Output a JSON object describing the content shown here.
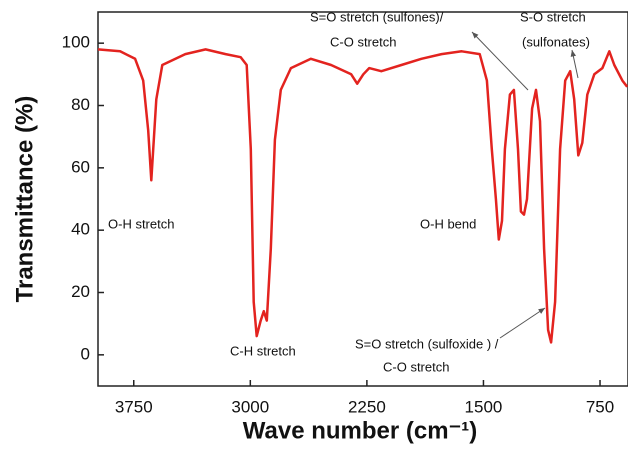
{
  "chart_data": {
    "type": "line",
    "xlabel": "Wave number (cm⁻¹)",
    "ylabel": "Transmittance (%)",
    "xlim": [
      3980,
      570
    ],
    "ylim": [
      -10,
      110
    ],
    "xticks": [
      3750,
      3000,
      2250,
      1500,
      750
    ],
    "yticks": [
      0,
      20,
      40,
      60,
      80,
      100
    ],
    "series": [
      {
        "color": "#e3231f",
        "x": [
          3980,
          3838,
          3741,
          3689,
          3657,
          3637,
          3605,
          3566,
          3418,
          3288,
          3159,
          3062,
          3023,
          2997,
          2978,
          2959,
          2933,
          2913,
          2894,
          2868,
          2842,
          2804,
          2739,
          2610,
          2480,
          2351,
          2312,
          2273,
          2235,
          2157,
          2028,
          1899,
          1769,
          1640,
          1524,
          1478,
          1446,
          1420,
          1401,
          1381,
          1362,
          1330,
          1304,
          1278,
          1259,
          1239,
          1220,
          1187,
          1162,
          1136,
          1110,
          1084,
          1065,
          1039,
          1007,
          974,
          942,
          916,
          890,
          864,
          832,
          787,
          735,
          690,
          658,
          606,
          575
        ],
        "values": [
          98,
          97.4,
          95,
          88,
          72,
          56,
          82,
          93,
          96.5,
          98,
          96.5,
          95.5,
          93,
          66,
          17,
          6,
          11,
          14,
          11,
          34,
          69,
          85,
          92,
          95,
          93,
          90,
          87,
          90,
          92,
          91,
          93,
          95,
          96.5,
          97.4,
          96.5,
          88,
          66,
          50,
          37,
          43,
          66,
          83.5,
          85,
          66,
          46,
          45,
          50,
          79,
          85,
          75,
          34,
          8,
          4,
          17,
          66,
          88,
          91,
          82,
          64,
          68,
          83.5,
          90,
          92,
          97.4,
          93,
          88,
          86
        ]
      }
    ],
    "annotations": [
      [
        "O-H stretch"
      ],
      [
        "C-H stretch"
      ],
      [
        "O-H bend"
      ],
      [
        "S=O stretch (sulfones)/",
        "C-O stretch"
      ],
      [
        "S-O stretch",
        "(sulfonates)"
      ],
      [
        "S=O stretch (sulfoxide ) /",
        "C-O stretch"
      ]
    ]
  }
}
